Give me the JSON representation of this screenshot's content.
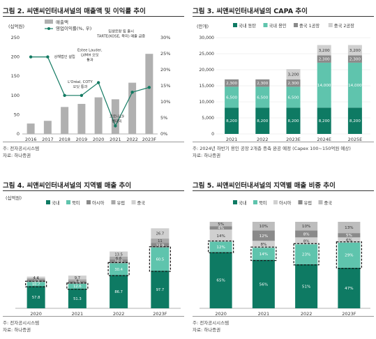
{
  "panels": [
    {
      "title": "그림 2. 씨앤씨인터내셔널의 매출액 및 이익률 추이",
      "source": "주: 전자공시시스템",
      "source2": "자료: 하나증권"
    },
    {
      "title": "그림 3. 씨앤씨인터내셔널의 CAPA 추이",
      "source": "주: 2024년 하반기 용인 공장 2개층 증축 완공 예정 (Capex 100~150억원 예상)",
      "source2": "자료: 하나증권"
    },
    {
      "title": "그림 4. 씨앤씨인터내셔널의 지역별 매출 추이",
      "source": "주: 전자공시시스템",
      "source2": "자료: 하나증권"
    },
    {
      "title": "그림 5. 씨앤씨인터내셔널의 지역별 매출 비중 추이",
      "source": "주: 전자공시시스템",
      "source2": "자료: 하나증권"
    }
  ],
  "colors": {
    "grey_bar": "#b0b0b0",
    "dark_teal": "#0e7a63",
    "light_teal": "#5fc4ad",
    "mid_grey": "#8a8a8a",
    "light_grey": "#d0d0d0",
    "line": "#137a62"
  },
  "chart_data": [
    {
      "type": "bar",
      "categories": [
        "2016",
        "2017",
        "2018",
        "2019",
        "2020",
        "2021",
        "2022",
        "2023F"
      ],
      "series": [
        {
          "name": "매출액",
          "values": [
            27,
            34,
            70,
            78,
            95,
            90,
            133,
            208
          ],
          "axis": "left"
        },
        {
          "name": "영업이익률(%, 우)",
          "values": [
            24,
            24,
            12,
            12,
            16,
            2.5,
            13,
            14.5
          ],
          "axis": "right",
          "type": "line"
        }
      ],
      "ylabel": "(십억원)",
      "ylim": [
        0,
        250
      ],
      "yticks": [
        0,
        50,
        100,
        150,
        200,
        250
      ],
      "y2lim": [
        0,
        30
      ],
      "y2ticks": [
        "0%",
        "5%",
        "10%",
        "15%",
        "20%",
        "25%",
        "30%"
      ],
      "annotations": [
        {
          "text": "상해법인 설립",
          "x": "2018",
          "y": 22
        },
        {
          "text": "L'Oréal, COTY\n오딧 통과",
          "x": "2019",
          "y": 15
        },
        {
          "text": "Estee Lauder,\nLVMH 오딧\n통과",
          "x": "2019",
          "y": 21
        },
        {
          "text": "코로나19\n팬데믹",
          "x": "2021",
          "y": 6
        },
        {
          "text": "입생로랑 립 출시\nTARTE(KOSE, 북미) 매출 급증",
          "x": "2022",
          "y": 26
        }
      ],
      "legend_position": "top-left"
    },
    {
      "type": "bar",
      "stacked": true,
      "categories": [
        "2021",
        "2022",
        "2023E",
        "2024E",
        "2025E"
      ],
      "series": [
        {
          "name": "국내 동탄",
          "values": [
            8200,
            8200,
            8200,
            8200,
            8200
          ]
        },
        {
          "name": "국내 용인",
          "values": [
            6500,
            6500,
            6500,
            14000,
            14000
          ]
        },
        {
          "name": "중국 1공장",
          "values": [
            2300,
            2300,
            2300,
            2300,
            2300
          ]
        },
        {
          "name": "중국 2공장",
          "values": [
            0,
            0,
            3200,
            3200,
            3200
          ]
        }
      ],
      "ylabel": "(만개)",
      "ylim": [
        0,
        30000
      ],
      "yticks": [
        "0",
        "5,000",
        "10,000",
        "15,000",
        "20,000",
        "25,000",
        "30,000"
      ],
      "legend_position": "top"
    },
    {
      "type": "bar",
      "stacked": true,
      "categories": [
        "2020",
        "2021",
        "2022",
        "2023F"
      ],
      "series": [
        {
          "name": "국내",
          "values": [
            57.8,
            51.3,
            86.7,
            97.7
          ]
        },
        {
          "name": "북미",
          "values": [
            10.7,
            12.6,
            30.4,
            60.5
          ]
        },
        {
          "name": "아시아",
          "values": [
            6.9,
            7.4,
            10.3,
            11.9
          ]
        },
        {
          "name": "유럽",
          "values": [
            2.5,
            4.0,
            6.6,
            11.0
          ]
        },
        {
          "name": "중국",
          "values": [
            4.4,
            9.7,
            13.5,
            26.7
          ]
        }
      ],
      "ylabel": "(십억원)",
      "ylim": [
        0,
        250
      ],
      "legend_position": "top"
    },
    {
      "type": "bar",
      "stacked": true,
      "categories": [
        "2020",
        "2021",
        "2022",
        "2023F"
      ],
      "series": [
        {
          "name": "국내",
          "values": [
            65,
            56,
            51,
            47
          ]
        },
        {
          "name": "북미",
          "values": [
            12,
            14,
            23,
            29
          ]
        },
        {
          "name": "아시아",
          "values": [
            14,
            8,
            8,
            6
          ]
        },
        {
          "name": "유럽",
          "values": [
            4,
            12,
            8,
            5
          ]
        },
        {
          "name": "중국",
          "values": [
            5,
            10,
            10,
            13
          ]
        }
      ],
      "labels": [
        "65%",
        "56%",
        "51%",
        "47%",
        "12%",
        "14%",
        "23%",
        "29%",
        "14%",
        "8%",
        "8%",
        "6%",
        "4%",
        "12%",
        "8%",
        "5%",
        "5%",
        "10%",
        "10%",
        "13%"
      ],
      "ylim": [
        0,
        100
      ],
      "legend_position": "top"
    }
  ]
}
